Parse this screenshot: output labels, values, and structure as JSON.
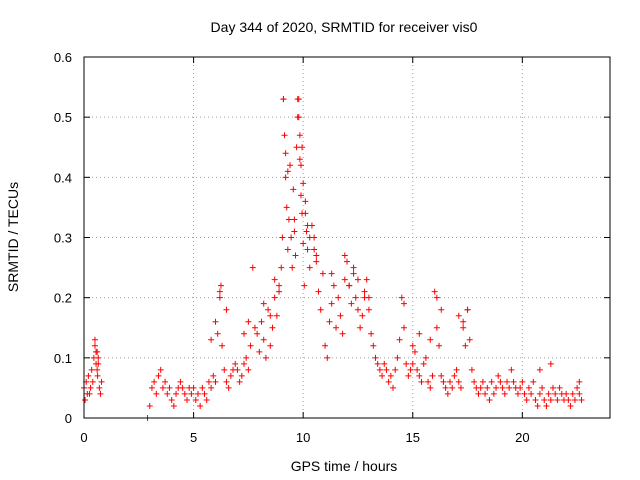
{
  "chart_data": {
    "type": "scatter",
    "title": "Day 344 of 2020, SRMTID for receiver vis0",
    "xlabel": "GPS time / hours",
    "ylabel": "SRMTID / TECUs",
    "xlim": [
      0,
      24
    ],
    "ylim": [
      0,
      0.6
    ],
    "xticks": [
      0,
      5,
      10,
      15,
      20
    ],
    "yticks": [
      0,
      0.1,
      0.2,
      0.3,
      0.4,
      0.5,
      0.6
    ],
    "xtick_labels": [
      "0",
      "5",
      "10",
      "15",
      "20"
    ],
    "ytick_labels": [
      "0",
      "0.1",
      "0.2",
      "0.3",
      "0.4",
      "0.5",
      "0.6"
    ],
    "grid": true,
    "marker": "+",
    "series_color": "#ff0000",
    "series": [
      {
        "name": "vis0",
        "x": [
          0.0,
          0.1,
          0.15,
          0.2,
          0.3,
          0.35,
          0.4,
          0.45,
          0.5,
          0.55,
          0.6,
          0.65,
          0.7,
          0.75,
          0.8,
          0.05,
          0.25,
          0.5,
          0.55,
          0.6,
          0.62,
          0.65,
          2.9,
          3.0,
          3.1,
          3.2,
          3.3,
          3.4,
          3.5,
          3.6,
          3.7,
          3.8,
          3.9,
          4.0,
          4.1,
          4.2,
          4.3,
          4.4,
          4.5,
          4.6,
          4.7,
          4.8,
          4.9,
          5.0,
          5.1,
          5.2,
          5.3,
          5.4,
          5.5,
          5.6,
          5.7,
          5.8,
          5.9,
          6.0,
          6.1,
          6.2,
          6.25,
          6.3,
          6.4,
          6.5,
          6.6,
          6.7,
          6.8,
          6.9,
          7.0,
          7.1,
          7.2,
          7.3,
          7.4,
          7.5,
          7.6,
          7.7,
          7.8,
          7.9,
          8.0,
          8.1,
          8.2,
          8.3,
          8.4,
          8.5,
          8.6,
          8.7,
          8.8,
          8.9,
          9.0,
          9.05,
          9.1,
          9.15,
          9.2,
          9.25,
          9.3,
          9.35,
          9.4,
          9.45,
          9.5,
          9.55,
          9.6,
          9.65,
          9.7,
          9.75,
          9.8,
          9.85,
          9.9,
          9.95,
          10.0,
          10.05,
          10.1,
          10.15,
          10.2,
          10.3,
          10.4,
          10.5,
          10.6,
          10.7,
          10.8,
          10.9,
          11.0,
          11.1,
          11.2,
          11.3,
          11.4,
          11.5,
          11.6,
          11.7,
          11.8,
          11.9,
          12.0,
          12.1,
          12.2,
          12.3,
          12.4,
          12.5,
          12.6,
          12.7,
          12.8,
          12.9,
          13.0,
          13.1,
          13.2,
          13.3,
          13.4,
          13.5,
          13.6,
          13.7,
          13.8,
          13.9,
          14.0,
          14.1,
          14.2,
          14.3,
          14.4,
          14.5,
          14.6,
          14.7,
          14.8,
          14.9,
          15.0,
          15.1,
          15.2,
          15.3,
          15.4,
          15.5,
          15.6,
          15.7,
          15.8,
          15.9,
          16.0,
          16.1,
          16.2,
          16.3,
          16.4,
          16.5,
          16.6,
          16.7,
          16.8,
          16.9,
          17.0,
          17.1,
          17.2,
          17.3,
          17.4,
          17.5,
          17.6,
          17.7,
          17.8,
          17.9,
          18.0,
          18.1,
          18.2,
          18.3,
          18.4,
          18.5,
          18.6,
          18.7,
          18.8,
          18.9,
          19.0,
          19.1,
          19.2,
          19.3,
          19.4,
          19.5,
          19.6,
          19.7,
          19.8,
          19.9,
          20.0,
          20.1,
          20.2,
          20.3,
          20.4,
          20.5,
          20.6,
          20.7,
          20.8,
          20.9,
          21.0,
          21.1,
          21.2,
          21.3,
          21.4,
          21.5,
          21.6,
          21.7,
          21.8,
          21.9,
          22.0,
          22.1,
          22.2,
          22.3,
          22.4,
          22.5,
          22.6,
          22.7,
          9.1,
          9.2,
          9.3,
          9.6,
          9.75,
          9.8,
          9.85,
          9.9,
          9.95,
          10.0,
          10.1,
          10.2,
          10.3,
          10.5,
          10.6,
          11.3,
          11.9,
          12.1,
          12.3,
          12.5,
          12.8,
          13.0,
          14.6,
          15.0,
          15.3,
          15.8,
          16.1,
          16.3,
          17.1,
          17.3,
          17.5,
          6.2,
          6.5,
          7.3,
          7.5,
          8.2,
          8.5,
          8.7,
          8.9,
          6.0,
          5.8,
          20.8,
          21.3,
          22.6
        ],
        "y": [
          0.05,
          0.06,
          0.04,
          0.07,
          0.05,
          0.08,
          0.06,
          0.1,
          0.12,
          0.11,
          0.08,
          0.09,
          0.05,
          0.04,
          0.06,
          0.03,
          0.04,
          0.13,
          0.09,
          0.11,
          0.07,
          0.1,
          0.0,
          0.02,
          0.05,
          0.06,
          0.04,
          0.07,
          0.08,
          0.05,
          0.06,
          0.04,
          0.05,
          0.03,
          0.02,
          0.04,
          0.05,
          0.06,
          0.05,
          0.04,
          0.03,
          0.05,
          0.04,
          0.05,
          0.03,
          0.04,
          0.02,
          0.05,
          0.04,
          0.03,
          0.06,
          0.05,
          0.07,
          0.06,
          0.14,
          0.2,
          0.22,
          0.12,
          0.08,
          0.06,
          0.05,
          0.07,
          0.08,
          0.09,
          0.08,
          0.06,
          0.07,
          0.09,
          0.1,
          0.08,
          0.12,
          0.25,
          0.15,
          0.14,
          0.11,
          0.16,
          0.13,
          0.1,
          0.18,
          0.12,
          0.15,
          0.2,
          0.17,
          0.22,
          0.25,
          0.3,
          0.53,
          0.47,
          0.4,
          0.35,
          0.28,
          0.33,
          0.42,
          0.3,
          0.25,
          0.38,
          0.31,
          0.27,
          0.45,
          0.53,
          0.5,
          0.43,
          0.37,
          0.34,
          0.29,
          0.22,
          0.36,
          0.31,
          0.28,
          0.25,
          0.32,
          0.3,
          0.27,
          0.21,
          0.18,
          0.24,
          0.12,
          0.1,
          0.16,
          0.19,
          0.22,
          0.15,
          0.2,
          0.17,
          0.14,
          0.27,
          0.26,
          0.22,
          0.19,
          0.25,
          0.2,
          0.18,
          0.15,
          0.17,
          0.21,
          0.23,
          0.2,
          0.14,
          0.12,
          0.1,
          0.09,
          0.08,
          0.07,
          0.09,
          0.08,
          0.06,
          0.07,
          0.05,
          0.08,
          0.1,
          0.13,
          0.2,
          0.15,
          0.09,
          0.07,
          0.08,
          0.09,
          0.11,
          0.08,
          0.07,
          0.06,
          0.09,
          0.1,
          0.06,
          0.05,
          0.07,
          0.21,
          0.15,
          0.12,
          0.07,
          0.06,
          0.05,
          0.04,
          0.06,
          0.05,
          0.07,
          0.08,
          0.06,
          0.05,
          0.16,
          0.12,
          0.18,
          0.13,
          0.08,
          0.06,
          0.05,
          0.04,
          0.05,
          0.06,
          0.04,
          0.05,
          0.03,
          0.06,
          0.04,
          0.05,
          0.07,
          0.06,
          0.05,
          0.04,
          0.06,
          0.05,
          0.08,
          0.06,
          0.05,
          0.04,
          0.05,
          0.06,
          0.04,
          0.03,
          0.05,
          0.04,
          0.06,
          0.03,
          0.02,
          0.04,
          0.05,
          0.03,
          0.02,
          0.04,
          0.03,
          0.05,
          0.04,
          0.03,
          0.05,
          0.04,
          0.03,
          0.04,
          0.03,
          0.02,
          0.04,
          0.03,
          0.05,
          0.04,
          0.03,
          0.53,
          0.44,
          0.41,
          0.33,
          0.5,
          0.53,
          0.47,
          0.42,
          0.45,
          0.39,
          0.34,
          0.32,
          0.3,
          0.28,
          0.26,
          0.24,
          0.23,
          0.22,
          0.24,
          0.23,
          0.2,
          0.18,
          0.19,
          0.12,
          0.14,
          0.13,
          0.2,
          0.18,
          0.17,
          0.15,
          0.18,
          0.21,
          0.18,
          0.14,
          0.16,
          0.19,
          0.17,
          0.23,
          0.21,
          0.16,
          0.13,
          0.08,
          0.09,
          0.06
        ]
      }
    ]
  }
}
